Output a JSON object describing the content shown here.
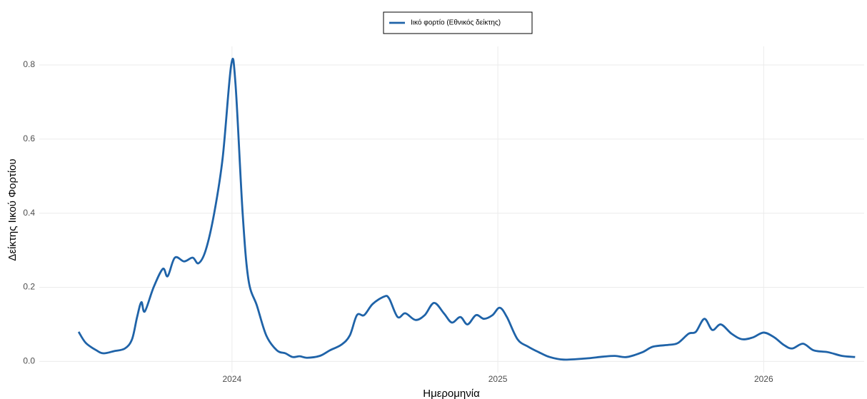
{
  "chart_data": {
    "type": "line",
    "x_label": "Ημερομηνία",
    "y_label": "Δείκτης Ιικού Φορτίου",
    "x": [
      2023.423,
      2023.45,
      2023.49,
      2023.517,
      2023.557,
      2023.597,
      2023.624,
      2023.643,
      2023.659,
      2023.672,
      2023.705,
      2023.74,
      2023.758,
      2023.785,
      2023.82,
      2023.852,
      2023.874,
      2023.901,
      2023.933,
      2023.965,
      2023.997,
      2024.013,
      2024.04,
      2024.062,
      2024.094,
      2024.129,
      2024.169,
      2024.201,
      2024.228,
      2024.255,
      2024.282,
      2024.33,
      2024.368,
      2024.411,
      2024.443,
      2024.47,
      2024.497,
      2024.529,
      2024.572,
      2024.591,
      2024.623,
      2024.652,
      2024.69,
      2024.725,
      2024.76,
      2024.797,
      2024.827,
      2024.859,
      2024.886,
      2024.918,
      2024.948,
      2024.98,
      2025.007,
      2025.034,
      2025.074,
      2025.114,
      2025.154,
      2025.195,
      2025.248,
      2025.329,
      2025.396,
      2025.441,
      2025.485,
      2025.544,
      2025.584,
      2025.646,
      2025.678,
      2025.718,
      2025.745,
      2025.777,
      2025.807,
      2025.839,
      2025.879,
      2025.919,
      2025.96,
      2026.0,
      2026.04,
      2026.075,
      2026.107,
      2026.148,
      2026.188,
      2026.242,
      2026.295,
      2026.344
    ],
    "series": [
      {
        "name": "Ιικό φορτίο (Εθνικός δείκτης)",
        "color": "#1f63a8",
        "values": [
          0.08,
          0.05,
          0.03,
          0.022,
          0.028,
          0.035,
          0.06,
          0.12,
          0.16,
          0.135,
          0.2,
          0.25,
          0.23,
          0.28,
          0.27,
          0.28,
          0.265,
          0.3,
          0.4,
          0.55,
          0.8,
          0.75,
          0.4,
          0.22,
          0.15,
          0.07,
          0.03,
          0.022,
          0.012,
          0.014,
          0.01,
          0.015,
          0.03,
          0.045,
          0.07,
          0.125,
          0.125,
          0.155,
          0.175,
          0.17,
          0.12,
          0.13,
          0.112,
          0.125,
          0.158,
          0.13,
          0.105,
          0.12,
          0.1,
          0.125,
          0.115,
          0.125,
          0.145,
          0.12,
          0.06,
          0.04,
          0.025,
          0.012,
          0.005,
          0.008,
          0.013,
          0.015,
          0.012,
          0.025,
          0.04,
          0.045,
          0.05,
          0.075,
          0.08,
          0.115,
          0.085,
          0.1,
          0.075,
          0.06,
          0.065,
          0.078,
          0.065,
          0.045,
          0.035,
          0.048,
          0.03,
          0.025,
          0.015,
          0.012
        ]
      }
    ],
    "xlim": [
      2023.275,
      2026.378
    ],
    "xticks": [
      2024,
      2025,
      2026
    ],
    "ylim": [
      -0.03,
      0.85
    ],
    "yticks": [
      {
        "value": 0,
        "label": "0.0"
      },
      0.2,
      0.4,
      0.6,
      0.8
    ],
    "grid": true,
    "legend": "top"
  }
}
